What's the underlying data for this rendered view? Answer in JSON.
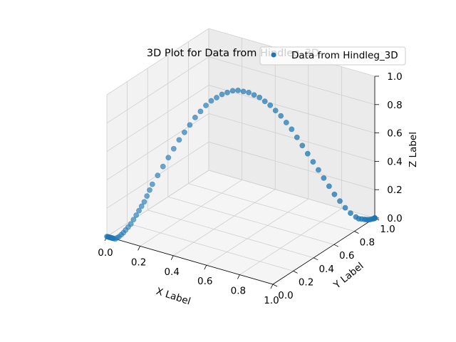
{
  "chart_data": {
    "type": "scatter",
    "projection": "3d",
    "title": "3D Plot for Data from Hindleg_3D",
    "xlabel": "X Label",
    "ylabel": "Y Label",
    "zlabel": "Z Label",
    "xlim": [
      0.0,
      1.0
    ],
    "ylim": [
      0.0,
      1.0
    ],
    "zlim": [
      0.0,
      1.0
    ],
    "xticks": [
      "0.0",
      "0.2",
      "0.4",
      "0.6",
      "0.8",
      "1.0"
    ],
    "yticks": [
      "0.0",
      "0.2",
      "0.4",
      "0.6",
      "0.8",
      "1.0"
    ],
    "zticks": [
      "0.0",
      "0.2",
      "0.4",
      "0.6",
      "0.8",
      "1.0"
    ],
    "grid": true,
    "legend_position": "top-right",
    "series": [
      {
        "name": "Data from Hindleg_3D",
        "color": "#1f77b4",
        "x": [
          0.0,
          0.004,
          0.008,
          0.012,
          0.016,
          0.02,
          0.024,
          0.028,
          0.032,
          0.036,
          0.04,
          0.05,
          0.06,
          0.07,
          0.08,
          0.09,
          0.1,
          0.11,
          0.12,
          0.13,
          0.14,
          0.15,
          0.16,
          0.17,
          0.18,
          0.19,
          0.2,
          0.22,
          0.24,
          0.26,
          0.28,
          0.3,
          0.32,
          0.34,
          0.36,
          0.38,
          0.4,
          0.42,
          0.44,
          0.46,
          0.48,
          0.5,
          0.52,
          0.54,
          0.56,
          0.58,
          0.6,
          0.62,
          0.64,
          0.66,
          0.68,
          0.7,
          0.72,
          0.74,
          0.76,
          0.78,
          0.8,
          0.82,
          0.84,
          0.86,
          0.88,
          0.9,
          0.92,
          0.94,
          0.96,
          0.965,
          0.97,
          0.975,
          0.98,
          0.985,
          0.99,
          0.995,
          1.0,
          1.0,
          1.0,
          1.0,
          1.0,
          1.0
        ],
        "y": [
          0.0,
          0.0,
          0.0,
          0.0,
          0.0,
          0.0,
          0.0,
          0.0,
          0.0,
          0.0,
          0.0,
          0.0,
          0.002,
          0.005,
          0.01,
          0.015,
          0.02,
          0.03,
          0.04,
          0.05,
          0.06,
          0.07,
          0.08,
          0.09,
          0.1,
          0.11,
          0.12,
          0.14,
          0.16,
          0.18,
          0.2,
          0.22,
          0.24,
          0.26,
          0.28,
          0.3,
          0.32,
          0.34,
          0.36,
          0.38,
          0.4,
          0.42,
          0.44,
          0.46,
          0.48,
          0.5,
          0.52,
          0.54,
          0.56,
          0.58,
          0.6,
          0.62,
          0.64,
          0.66,
          0.68,
          0.7,
          0.72,
          0.74,
          0.76,
          0.78,
          0.8,
          0.82,
          0.84,
          0.86,
          0.88,
          0.9,
          0.92,
          0.94,
          0.95,
          0.96,
          0.97,
          0.98,
          0.99,
          0.995,
          1.0,
          1.0,
          1.0,
          1.0
        ],
        "z": [
          0.0,
          0.0,
          0.0,
          0.0,
          0.0,
          0.0,
          0.0,
          0.0,
          0.0,
          0.0,
          0.0,
          0.0,
          0.01,
          0.02,
          0.035,
          0.05,
          0.07,
          0.09,
          0.11,
          0.14,
          0.17,
          0.2,
          0.23,
          0.26,
          0.3,
          0.34,
          0.38,
          0.44,
          0.5,
          0.56,
          0.62,
          0.68,
          0.73,
          0.78,
          0.83,
          0.87,
          0.91,
          0.94,
          0.96,
          0.98,
          0.99,
          1.0,
          1.0,
          0.99,
          0.98,
          0.96,
          0.94,
          0.91,
          0.88,
          0.84,
          0.8,
          0.75,
          0.7,
          0.64,
          0.58,
          0.52,
          0.46,
          0.4,
          0.34,
          0.28,
          0.22,
          0.17,
          0.12,
          0.08,
          0.05,
          0.03,
          0.02,
          0.01,
          0.005,
          0.002,
          0.0,
          0.0,
          0.0,
          0.0,
          0.0,
          0.0,
          0.0,
          0.0
        ]
      }
    ]
  }
}
